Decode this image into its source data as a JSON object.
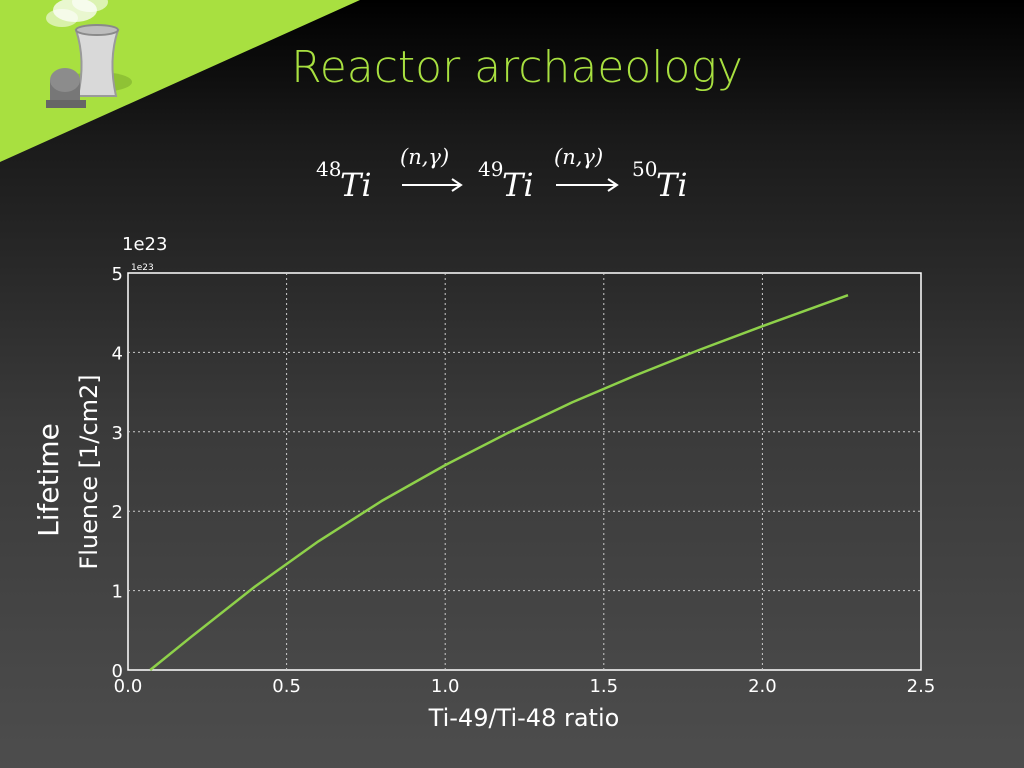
{
  "slide": {
    "title": "Reactor archaeology",
    "equation": {
      "parts": [
        {
          "mass": "48",
          "symbol": "Ti"
        },
        {
          "mass": "49",
          "symbol": "Ti"
        },
        {
          "mass": "50",
          "symbol": "Ti"
        }
      ],
      "reaction_label": "(n,γ)"
    },
    "colors": {
      "accent": "#a8e040",
      "line": "#8ed14a",
      "grid": "#cccccc"
    },
    "icon": "reactor-cooling-tower-icon"
  },
  "chart_data": {
    "type": "line",
    "title": "",
    "xlabel": "Ti-49/Ti-48 ratio",
    "ylabel_top": "Lifetime",
    "ylabel": "Fluence [1/cm2]",
    "offset_label": "1e23",
    "offset_label_small": "1e23",
    "xlim": [
      0.0,
      2.5
    ],
    "ylim": [
      0,
      5
    ],
    "xticks": [
      "0.0",
      "0.5",
      "1.0",
      "1.5",
      "2.0",
      "2.5"
    ],
    "yticks": [
      "0",
      "1",
      "2",
      "3",
      "4",
      "5"
    ],
    "grid": true,
    "series": [
      {
        "x": [
          0.07,
          0.2,
          0.4,
          0.6,
          0.8,
          1.0,
          1.2,
          1.4,
          1.6,
          1.8,
          2.0,
          2.27
        ],
        "y": [
          0.0,
          0.42,
          1.05,
          1.62,
          2.13,
          2.58,
          2.99,
          3.37,
          3.71,
          4.03,
          4.33,
          4.72
        ]
      }
    ]
  }
}
